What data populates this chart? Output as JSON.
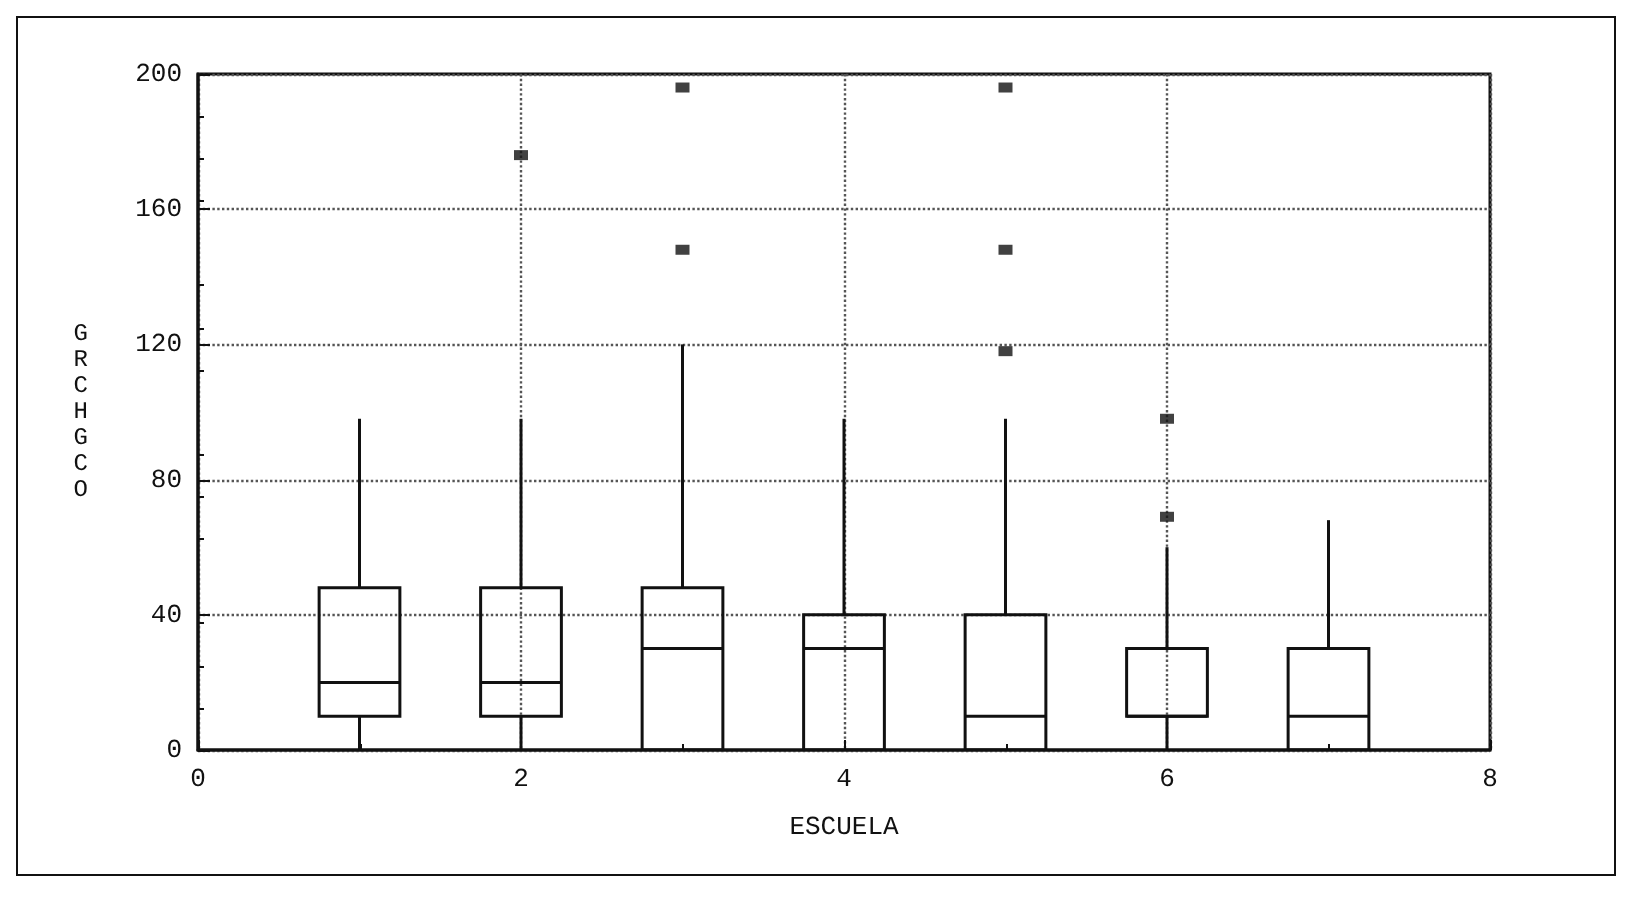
{
  "chart_data": {
    "type": "box",
    "xlabel": "ESCUELA",
    "ylabel": "GRCHGCO",
    "x": [
      1,
      2,
      3,
      4,
      5,
      6,
      7
    ],
    "xlim": [
      0,
      8
    ],
    "xticks": [
      0,
      2,
      4,
      6,
      8
    ],
    "ylim": [
      0,
      200
    ],
    "yticks": [
      0,
      40,
      80,
      120,
      160,
      200
    ],
    "grid": true,
    "color": "#111111",
    "boxes": [
      {
        "low": 0,
        "q1": 10,
        "median": 20,
        "q3": 48,
        "high": 98
      },
      {
        "low": 0,
        "q1": 10,
        "median": 20,
        "q3": 48,
        "high": 98,
        "outliers": [
          176
        ]
      },
      {
        "low": 0,
        "q1": 0,
        "median": 30,
        "q3": 48,
        "high": 120,
        "outliers": [
          148,
          196
        ]
      },
      {
        "low": 0,
        "q1": 0,
        "median": 30,
        "q3": 40,
        "high": 98
      },
      {
        "low": 0,
        "q1": 0,
        "median": 10,
        "q3": 40,
        "high": 98,
        "outliers": [
          118,
          148,
          196
        ]
      },
      {
        "low": 0,
        "q1": 10,
        "median": 10,
        "q3": 30,
        "high": 60,
        "outliers": [
          69,
          98
        ]
      },
      {
        "low": 0,
        "q1": 0,
        "median": 10,
        "q3": 30,
        "high": 68
      }
    ]
  }
}
